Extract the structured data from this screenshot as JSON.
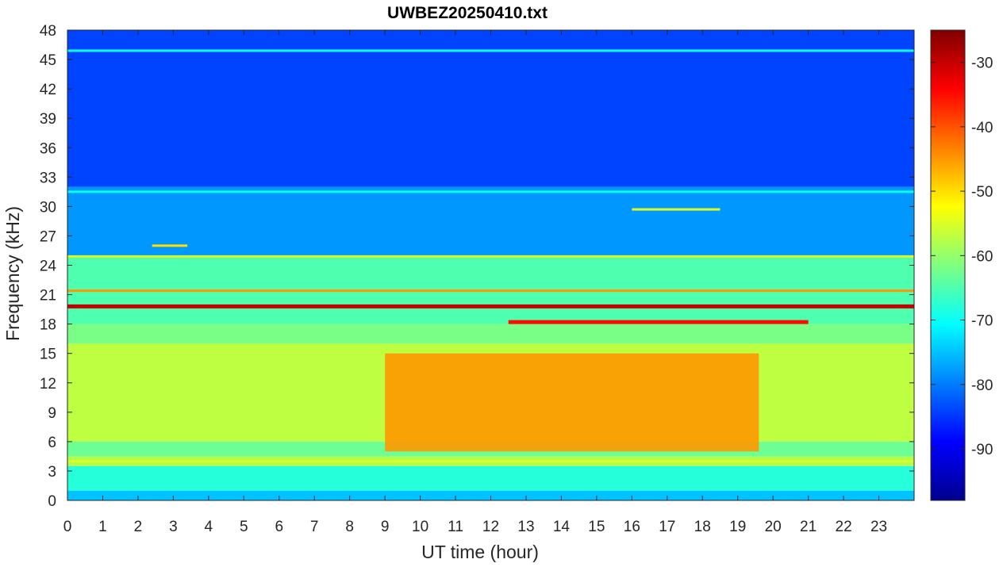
{
  "chart_data": {
    "type": "heatmap",
    "title": "UWBEZ20250410.txt",
    "xlabel": "UT time (hour)",
    "ylabel": "Frequency (kHz)",
    "xlim": [
      0,
      24
    ],
    "ylim": [
      0,
      48
    ],
    "xticks": [
      "0",
      "1",
      "2",
      "3",
      "4",
      "5",
      "6",
      "7",
      "8",
      "9",
      "10",
      "11",
      "12",
      "13",
      "14",
      "15",
      "16",
      "17",
      "18",
      "19",
      "20",
      "21",
      "22",
      "23"
    ],
    "yticks": [
      "0",
      "3",
      "6",
      "9",
      "12",
      "15",
      "18",
      "21",
      "24",
      "27",
      "30",
      "33",
      "36",
      "39",
      "42",
      "45",
      "48"
    ],
    "colorbar": {
      "colormap": "jet",
      "clim": [
        -98,
        -25
      ],
      "ticks": [
        "-90",
        "-80",
        "-70",
        "-60",
        "-50",
        "-40",
        "-30"
      ]
    },
    "background_levels": [
      {
        "freq_range": [
          0,
          1
        ],
        "level_dbfs": -75
      },
      {
        "freq_range": [
          1,
          3.5
        ],
        "level_dbfs": -68
      },
      {
        "freq_range": [
          3.5,
          4.5
        ],
        "level_dbfs": -58
      },
      {
        "freq_range": [
          4.5,
          6
        ],
        "level_dbfs": -63
      },
      {
        "freq_range": [
          6,
          16
        ],
        "level_dbfs": -57
      },
      {
        "freq_range": [
          16,
          18
        ],
        "level_dbfs": -62
      },
      {
        "freq_range": [
          18,
          25
        ],
        "level_dbfs": -65
      },
      {
        "freq_range": [
          25,
          32
        ],
        "level_dbfs": -78
      },
      {
        "freq_range": [
          32,
          48
        ],
        "level_dbfs": -84
      }
    ],
    "daytime_enhancement": {
      "time_range": [
        9,
        19.6
      ],
      "freq_range": [
        5,
        15
      ],
      "level_dbfs": -45
    },
    "lines": [
      {
        "freq": 19.8,
        "time_range": [
          0,
          24
        ],
        "level_dbfs": -30
      },
      {
        "freq": 18.2,
        "time_range": [
          12.5,
          21
        ],
        "level_dbfs": -35
      },
      {
        "freq": 21.4,
        "time_range": [
          0,
          24
        ],
        "level_dbfs": -45
      },
      {
        "freq": 24.9,
        "time_range": [
          0,
          24
        ],
        "level_dbfs": -55
      },
      {
        "freq": 4.0,
        "time_range": [
          0,
          24
        ],
        "level_dbfs": -55
      },
      {
        "freq": 31.5,
        "time_range": [
          0,
          24
        ],
        "level_dbfs": -70
      },
      {
        "freq": 29.7,
        "time_range": [
          16,
          18.5
        ],
        "level_dbfs": -55
      },
      {
        "freq": 26.0,
        "time_range": [
          2.4,
          3.4
        ],
        "level_dbfs": -50
      },
      {
        "freq": 45.9,
        "time_range": [
          0,
          24
        ],
        "level_dbfs": -70
      }
    ]
  }
}
